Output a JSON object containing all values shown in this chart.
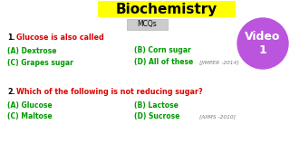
{
  "bg_color": "#ffffff",
  "title": "Biochemistry",
  "title_bg": "#ffff00",
  "title_color": "#000000",
  "title_fontsize": 11,
  "subtitle": "MCQs",
  "subtitle_bg": "#cccccc",
  "subtitle_color": "#000000",
  "subtitle_fontsize": 5.5,
  "video_circle_color": "#bb55dd",
  "video_text": "Video\n1",
  "video_text_color": "#ffffff",
  "video_fontsize": 9,
  "q1_number": "1.",
  "q1_text": " Glucose is also called",
  "q1_color": "#dd0000",
  "q1_number_color": "#000000",
  "q1_options": [
    {
      "label": "(A) Dextrose",
      "col": 0,
      "row": 0
    },
    {
      "label": "(B) Corn sugar",
      "col": 1,
      "row": 0
    },
    {
      "label": "(C) Grapes sugar",
      "col": 0,
      "row": 1
    },
    {
      "label": "(D) All of these",
      "col": 1,
      "row": 1
    }
  ],
  "q1_source": "[JIMPER -2014]",
  "q1_source_color": "#777777",
  "q1_options_color": "#009900",
  "q2_number": "2.",
  "q2_text": " Which of the following is not reducing sugar?",
  "q2_color": "#dd0000",
  "q2_number_color": "#000000",
  "q2_options": [
    {
      "label": "(A) Glucose",
      "col": 0,
      "row": 0
    },
    {
      "label": "(B) Lactose",
      "col": 1,
      "row": 0
    },
    {
      "label": "(C) Maltose",
      "col": 0,
      "row": 1
    },
    {
      "label": "(D) Sucrose",
      "col": 1,
      "row": 1
    }
  ],
  "q2_source": "[AIIMS -2010]",
  "q2_source_color": "#777777",
  "q2_options_color": "#009900",
  "opt_fontsize": 5.5,
  "q_fontsize": 5.8,
  "source_fontsize": 4.2
}
